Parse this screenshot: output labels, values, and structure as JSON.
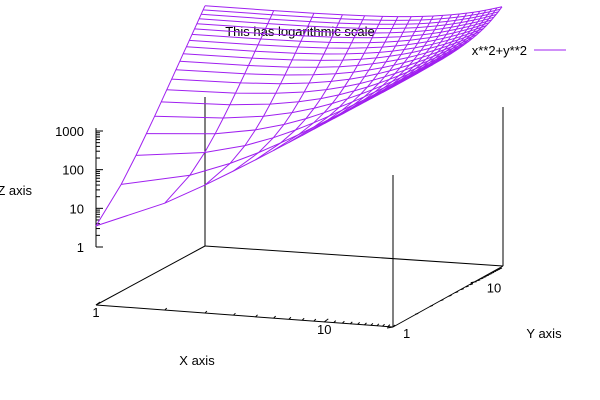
{
  "chart_data": {
    "type": "surface",
    "title": "This has logarithmic scale",
    "xlabel": "X axis",
    "ylabel": "Y axis",
    "zlabel": "Z axis",
    "log_scale": {
      "x": true,
      "y": true,
      "z": true
    },
    "xlim": [
      1,
      20
    ],
    "ylim": [
      1,
      20
    ],
    "zlim": [
      1,
      1000
    ],
    "x_ticks": [
      {
        "value": 1,
        "label": "1"
      },
      {
        "value": 10,
        "label": "10"
      }
    ],
    "y_ticks": [
      {
        "value": 1,
        "label": "1"
      },
      {
        "value": 10,
        "label": "10"
      }
    ],
    "z_ticks": [
      {
        "value": 1,
        "label": "1"
      },
      {
        "value": 10,
        "label": "10"
      },
      {
        "value": 100,
        "label": "100"
      },
      {
        "value": 1000,
        "label": "1000"
      }
    ],
    "series": [
      {
        "name": "x**2+y**2",
        "formula": "x**2+y**2",
        "style": "wireframe",
        "color": "#a020f0",
        "x": [
          1,
          2,
          3,
          4,
          5,
          6,
          7,
          8,
          9,
          10,
          11,
          12,
          13,
          14,
          15,
          16,
          17,
          18,
          19,
          20
        ],
        "y": [
          1,
          2,
          3,
          4,
          5,
          6,
          7,
          8,
          9,
          10,
          11,
          12,
          13,
          14,
          15,
          16,
          17,
          18,
          19,
          20
        ]
      }
    ],
    "legend": "top-right",
    "grid": false
  }
}
